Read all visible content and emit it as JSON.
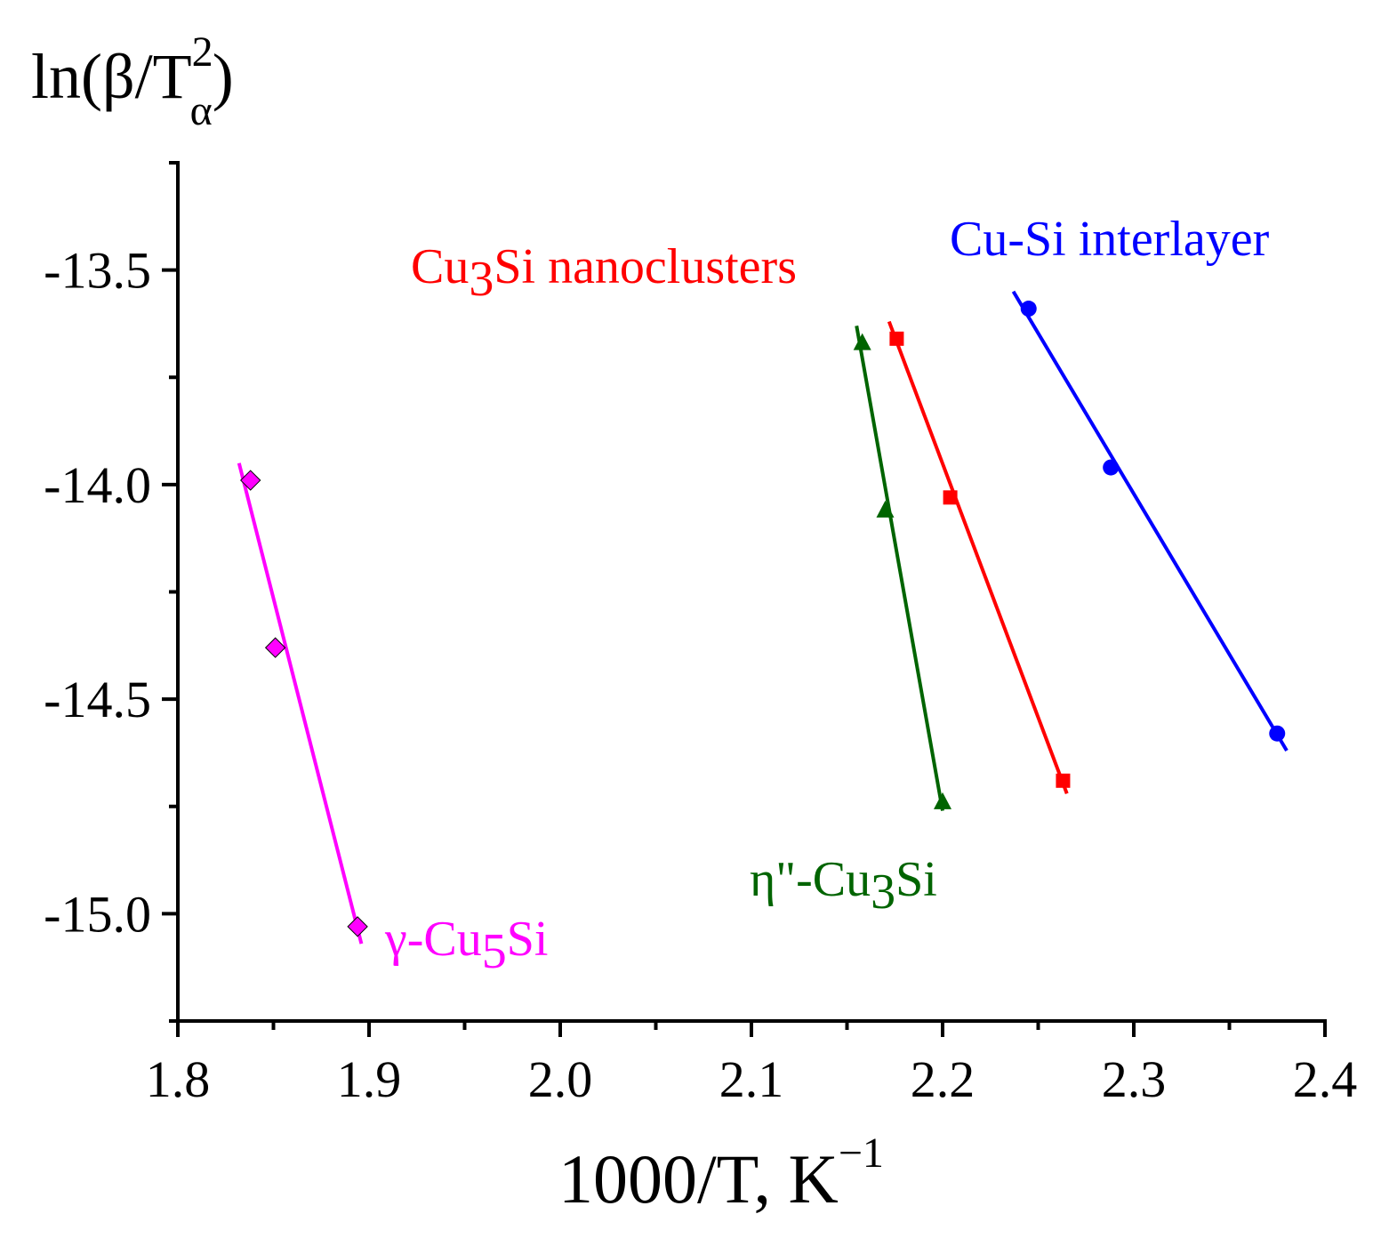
{
  "chart_data": {
    "type": "scatter",
    "title": "",
    "ylabel": {
      "main": "ln(β/T",
      "sup": "2",
      "sub": "α",
      "close": ")"
    },
    "xlabel": {
      "main": "1000/T, K",
      "sup": "−1"
    },
    "xlim": [
      1.8,
      2.4
    ],
    "ylim": [
      -15.25,
      -13.25
    ],
    "x_ticks": [
      1.8,
      1.9,
      2.0,
      2.1,
      2.2,
      2.3,
      2.4
    ],
    "x_tick_labels": [
      "1.8",
      "1.9",
      "2.0",
      "2.1",
      "2.2",
      "2.3",
      "2.4"
    ],
    "y_ticks": [
      -13.5,
      -14.0,
      -14.5,
      -15.0
    ],
    "y_tick_labels": [
      "-13.5",
      "-14.0",
      "-14.5",
      "-15.0"
    ],
    "grid": false,
    "series": [
      {
        "name": "Cu-Si interlayer",
        "label_parts": [
          {
            "text": "Cu-Si interlayer"
          }
        ],
        "color": "#0000ff",
        "marker": "circle",
        "points": [
          [
            2.245,
            -13.59
          ],
          [
            2.288,
            -13.96
          ],
          [
            2.375,
            -14.58
          ]
        ],
        "fit": [
          [
            2.237,
            -13.55
          ],
          [
            2.38,
            -14.62
          ]
        ]
      },
      {
        "name": "Cu3Si nanoclusters",
        "label_parts": [
          {
            "text": "Cu"
          },
          {
            "text": "3",
            "sub": true
          },
          {
            "text": "Si nanoclusters"
          }
        ],
        "color": "#ff0000",
        "marker": "square",
        "points": [
          [
            2.176,
            -13.66
          ],
          [
            2.204,
            -14.03
          ],
          [
            2.263,
            -14.69
          ]
        ],
        "fit": [
          [
            2.172,
            -13.62
          ],
          [
            2.265,
            -14.72
          ]
        ]
      },
      {
        "name": "η\"-Cu3Si",
        "label_parts": [
          {
            "text": "η\"-Cu"
          },
          {
            "text": "3",
            "sub": true
          },
          {
            "text": "Si"
          }
        ],
        "color": "#006400",
        "marker": "triangle",
        "points": [
          [
            2.158,
            -13.67
          ],
          [
            2.17,
            -14.06
          ],
          [
            2.2,
            -14.74
          ]
        ],
        "fit": [
          [
            2.155,
            -13.63
          ],
          [
            2.2,
            -14.76
          ]
        ]
      },
      {
        "name": "γ-Cu5Si",
        "label_parts": [
          {
            "text": "γ-Cu"
          },
          {
            "text": "5",
            "sub": true
          },
          {
            "text": "Si"
          }
        ],
        "color": "#ff00ff",
        "marker": "diamond",
        "points": [
          [
            1.838,
            -13.99
          ],
          [
            1.851,
            -14.38
          ],
          [
            1.894,
            -15.03
          ]
        ],
        "fit": [
          [
            1.832,
            -13.95
          ],
          [
            1.896,
            -15.07
          ]
        ]
      }
    ]
  }
}
